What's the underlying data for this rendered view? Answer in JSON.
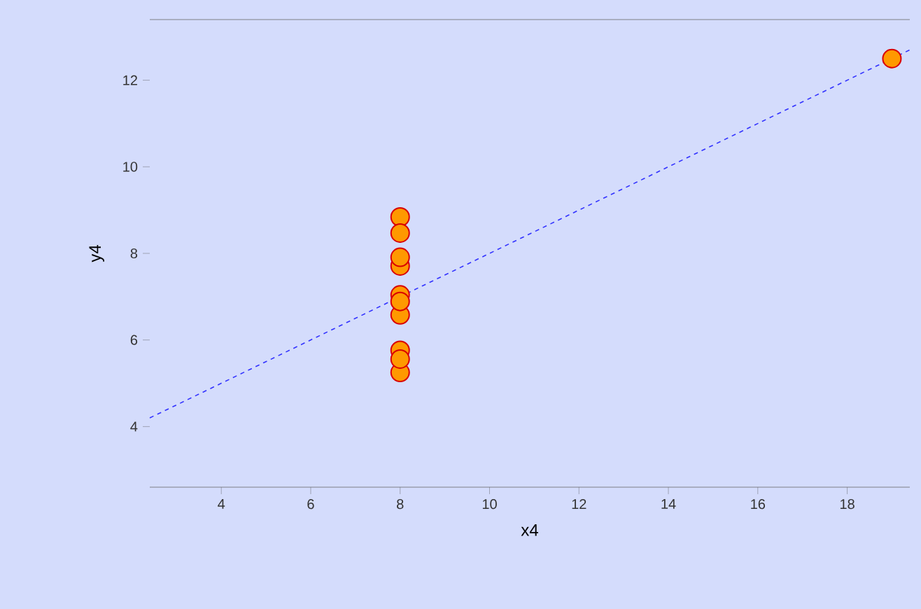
{
  "chart_data": {
    "type": "scatter",
    "xlabel": "x4",
    "ylabel": "y4",
    "xlim": [
      2.4,
      19.4
    ],
    "ylim": [
      2.6,
      13.4
    ],
    "xticks": [
      4,
      6,
      8,
      10,
      12,
      14,
      16,
      18
    ],
    "yticks": [
      4,
      6,
      8,
      10,
      12
    ],
    "series": [
      {
        "type": "scatter",
        "color": "#ff9900",
        "marker": "circle",
        "x": [
          8,
          8,
          8,
          8,
          8,
          8,
          8,
          19,
          8,
          8,
          8
        ],
        "values": [
          6.58,
          5.76,
          7.71,
          8.84,
          8.47,
          7.04,
          5.25,
          12.5,
          5.56,
          7.91,
          6.89
        ]
      },
      {
        "type": "line",
        "color": "#3333ff",
        "line_style": "dashed",
        "marker": "none",
        "x": [
          2.4,
          19.4
        ],
        "values": [
          4.2,
          12.7
        ]
      }
    ]
  }
}
